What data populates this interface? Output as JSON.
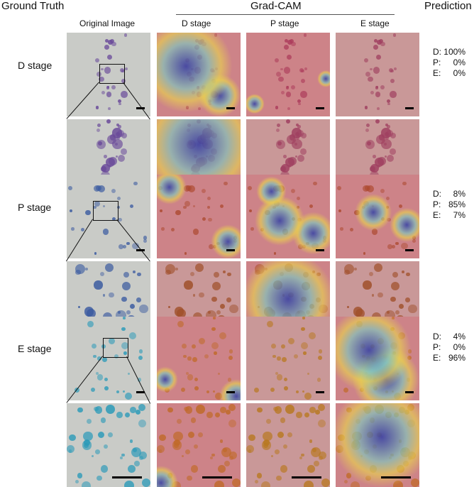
{
  "headers": {
    "ground_truth": "Ground Truth",
    "gradcam": "Grad-CAM",
    "prediction": "Prediction"
  },
  "columns": [
    "Original Image",
    "D stage",
    "P stage",
    "E stage"
  ],
  "rows": [
    {
      "label": "D stage",
      "pred": [
        [
          "D:",
          "100%"
        ],
        [
          "P:",
          "0%"
        ],
        [
          "E:",
          "0%"
        ]
      ]
    },
    {
      "label": "P stage",
      "pred": [
        [
          "D:",
          "8%"
        ],
        [
          "P:",
          "85%"
        ],
        [
          "E:",
          "7%"
        ]
      ]
    },
    {
      "label": "E stage",
      "pred": [
        [
          "D:",
          "4%"
        ],
        [
          "P:",
          "0%"
        ],
        [
          "E:",
          "96%"
        ]
      ]
    }
  ],
  "colors": {
    "cam_hot": "#e0304a",
    "cam_cold": "#2a3ca8",
    "cam_mid": "#7ec8c0",
    "purple_cells": "#6a4a9a",
    "blue_cells": "#3a5aa0",
    "teal_cells": "#2a9ab8",
    "orange_cells": "#b87820"
  }
}
